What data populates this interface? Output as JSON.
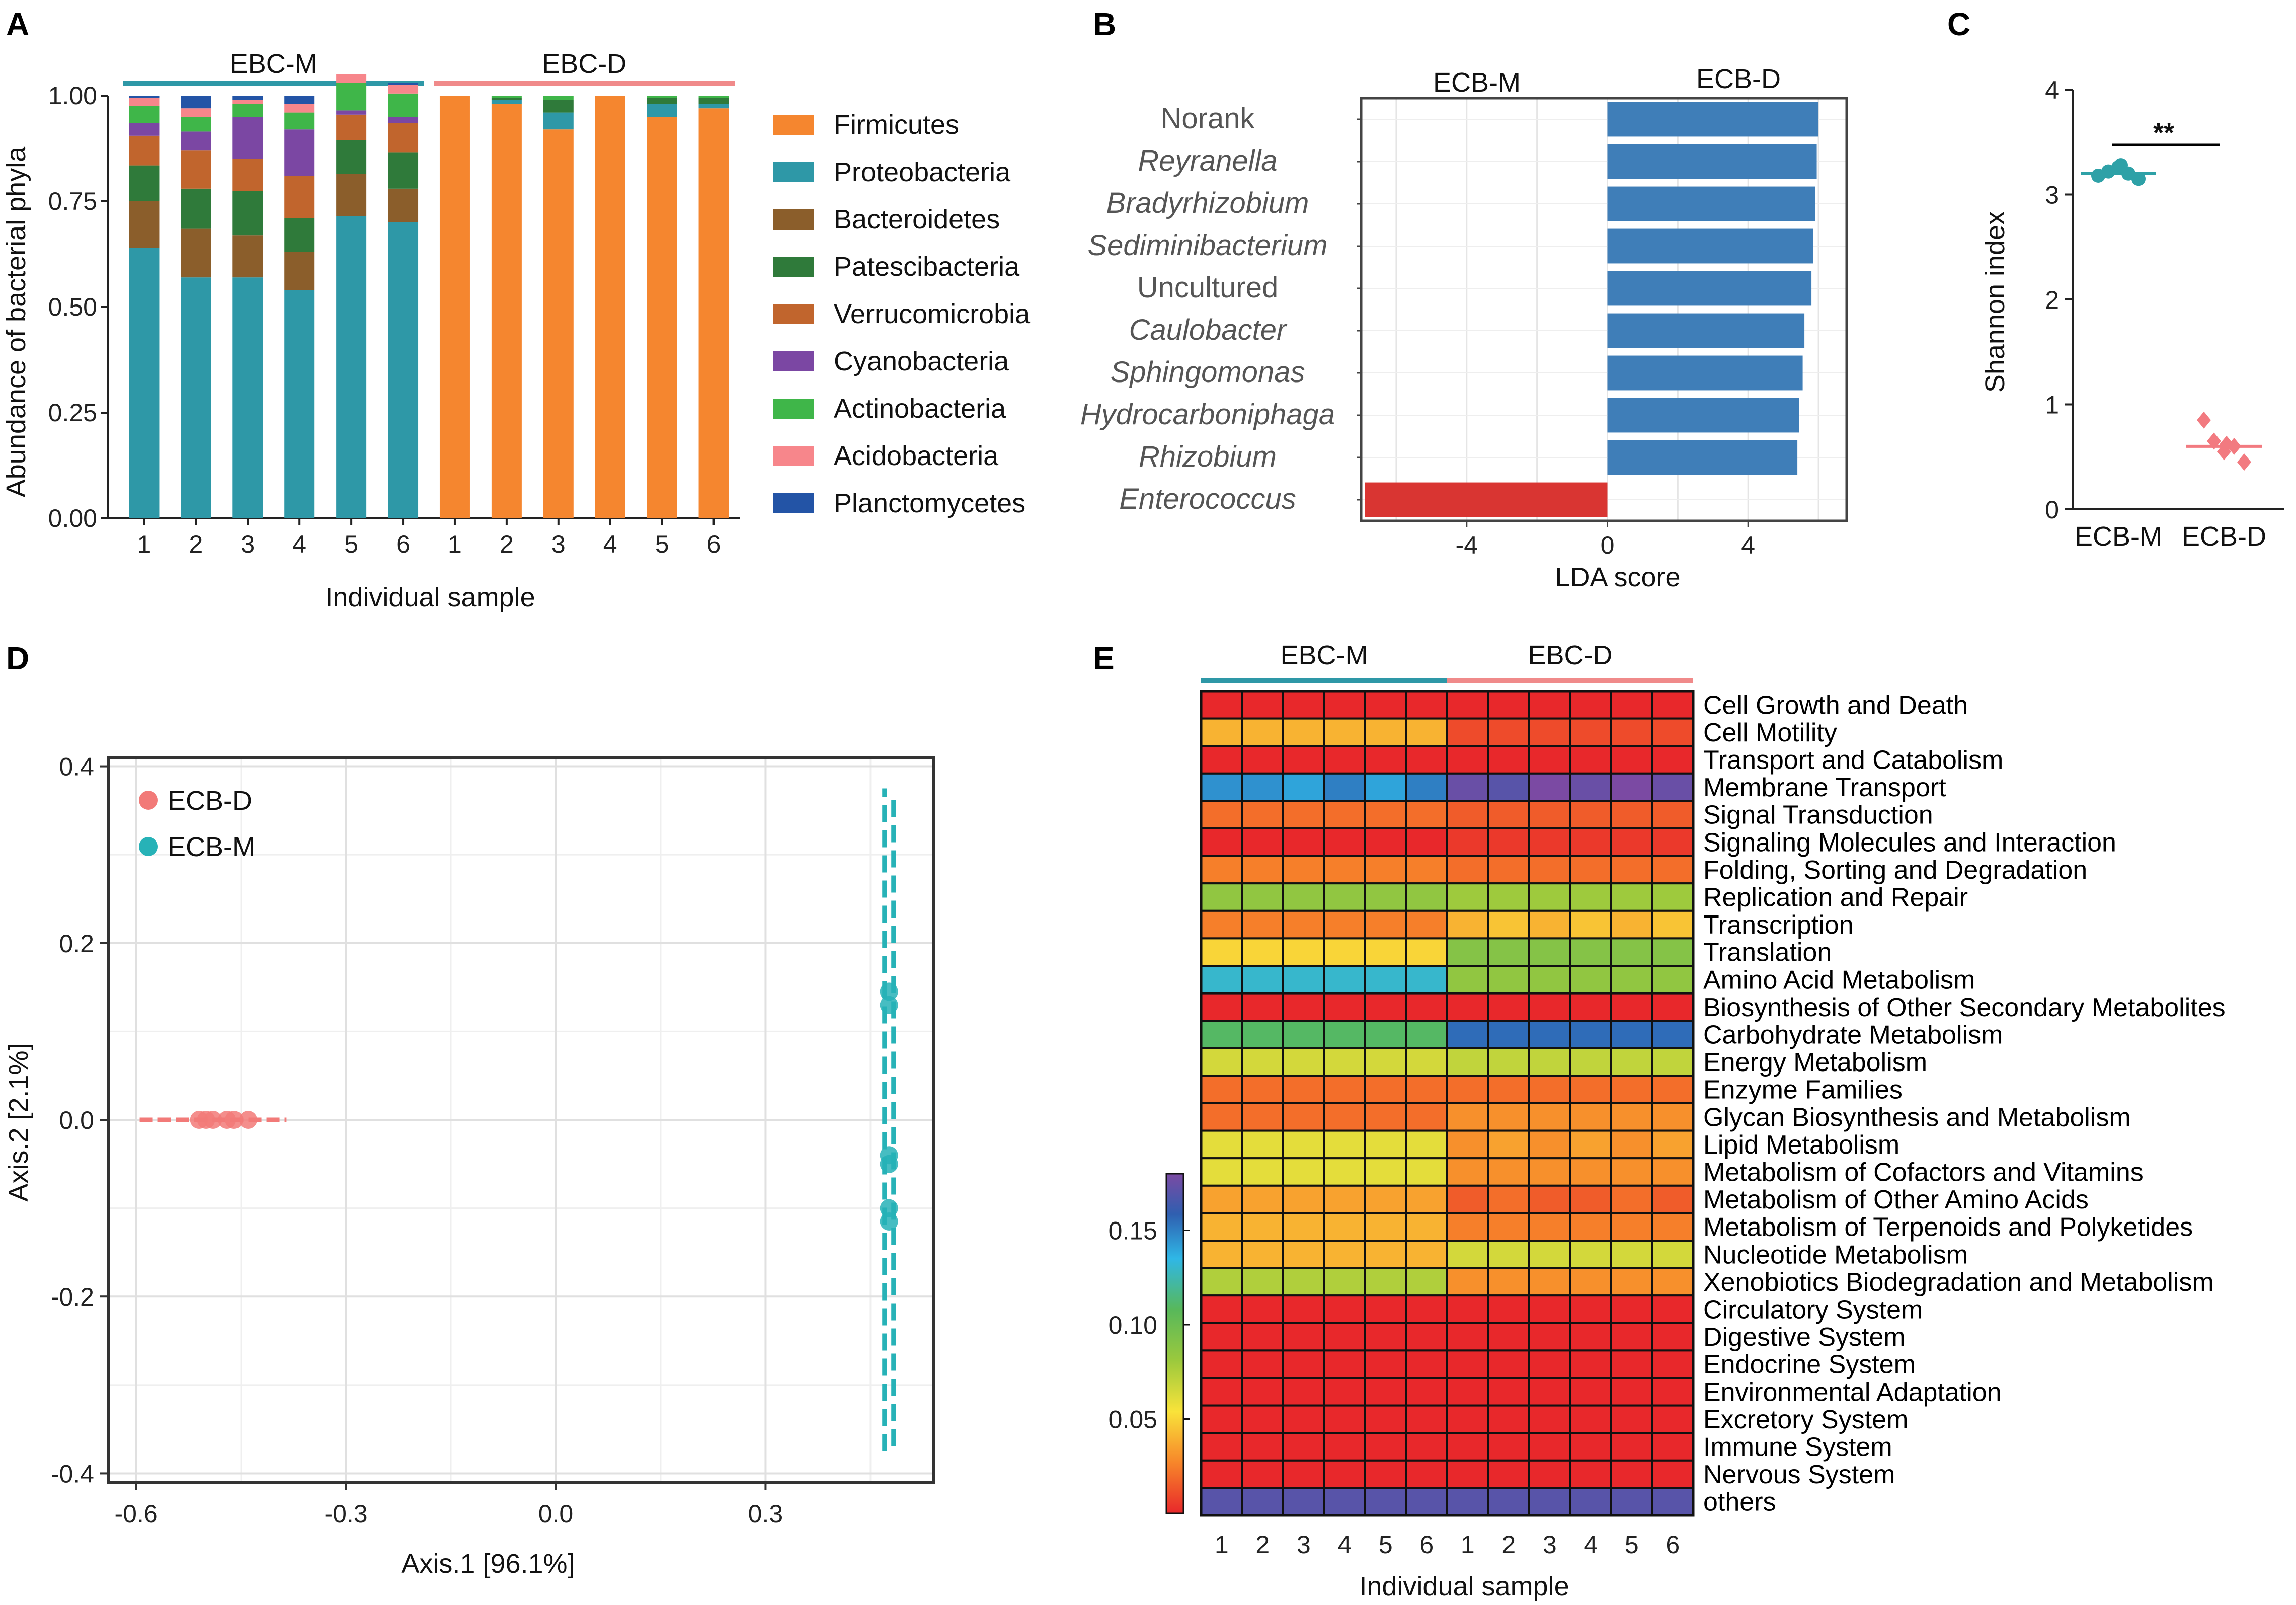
{
  "chart_data": [
    {
      "panel": "A",
      "type": "bar",
      "stacked": true,
      "group_labels": [
        "EBC-M",
        "EBC-D"
      ],
      "group_colors": [
        "#2e98a7",
        "#f08a8a"
      ],
      "categories": [
        "1",
        "2",
        "3",
        "4",
        "5",
        "6",
        "1",
        "2",
        "3",
        "4",
        "5",
        "6"
      ],
      "xlabel": "Individual sample",
      "ylabel": "Abundance of bacterial phyla",
      "yticks": [
        "0.00",
        "0.25",
        "0.50",
        "0.75",
        "1.00"
      ],
      "ylim": [
        0,
        1
      ],
      "series": [
        {
          "name": "Firmicutes",
          "color": "#f5862f",
          "values": [
            0.0,
            0.0,
            0.0,
            0.0,
            0.0,
            0.0,
            1.0,
            0.98,
            0.92,
            1.0,
            0.95,
            0.97
          ]
        },
        {
          "name": "Proteobacteria",
          "color": "#2e98a7",
          "values": [
            0.64,
            0.57,
            0.57,
            0.54,
            0.715,
            0.7,
            0.0,
            0.01,
            0.04,
            0.0,
            0.03,
            0.01
          ]
        },
        {
          "name": "Bacteroidetes",
          "color": "#8b5e2b",
          "values": [
            0.11,
            0.115,
            0.1,
            0.09,
            0.1,
            0.08,
            0.0,
            0.0,
            0.0,
            0.0,
            0.0,
            0.0
          ]
        },
        {
          "name": "Patescibacteria",
          "color": "#2f7a3a",
          "values": [
            0.085,
            0.095,
            0.105,
            0.08,
            0.08,
            0.085,
            0.0,
            0.005,
            0.03,
            0.0,
            0.015,
            0.015
          ]
        },
        {
          "name": "Verrucomicrobia",
          "color": "#c1652d",
          "values": [
            0.07,
            0.09,
            0.075,
            0.1,
            0.06,
            0.07,
            0.0,
            0.0,
            0.0,
            0.0,
            0.0,
            0.0
          ]
        },
        {
          "name": "Cyanobacteria",
          "color": "#7b47a3",
          "values": [
            0.03,
            0.045,
            0.1,
            0.11,
            0.01,
            0.015,
            0.0,
            0.0,
            0.0,
            0.0,
            0.0,
            0.0
          ]
        },
        {
          "name": "Actinobacteria",
          "color": "#3fb649",
          "values": [
            0.04,
            0.035,
            0.03,
            0.04,
            0.065,
            0.055,
            0.0,
            0.005,
            0.01,
            0.0,
            0.005,
            0.005
          ]
        },
        {
          "name": "Acidobacteria",
          "color": "#f7868b",
          "values": [
            0.02,
            0.02,
            0.01,
            0.02,
            0.02,
            0.02,
            0.0,
            0.0,
            0.0,
            0.0,
            0.0,
            0.0
          ]
        },
        {
          "name": "Planctomycetes",
          "color": "#2354a6",
          "values": [
            0.005,
            0.03,
            0.01,
            0.02,
            0.0,
            0.005,
            0.0,
            0.0,
            0.0,
            0.0,
            0.0,
            0.0
          ]
        }
      ]
    },
    {
      "panel": "B",
      "type": "bar",
      "orientation": "horizontal",
      "xlabel": "LDA score",
      "group_labels": [
        "ECB-M",
        "ECB-D"
      ],
      "xticks": [
        "-4",
        "0",
        "4"
      ],
      "xlim": [
        -7,
        6.8
      ],
      "categories": [
        "Norank",
        "Reyranella",
        "Bradyrhizobium",
        "Sediminibacterium",
        "Uncultured",
        "Caulobacter",
        "Sphingomonas",
        "Hydrocarboniphaga",
        "Rhizobium",
        "Enterococcus"
      ],
      "italic": [
        false,
        true,
        true,
        true,
        false,
        true,
        true,
        true,
        true,
        true
      ],
      "values": [
        6.0,
        5.95,
        5.9,
        5.85,
        5.8,
        5.6,
        5.55,
        5.45,
        5.4,
        -6.9
      ],
      "colors": {
        "positive": "#3f7eb8",
        "negative": "#d93532"
      }
    },
    {
      "panel": "C",
      "type": "scatter",
      "ylabel": "Shannon index",
      "categories": [
        "ECB-M",
        "ECB-D"
      ],
      "yticks": [
        "0",
        "1",
        "2",
        "3",
        "4"
      ],
      "ylim": [
        0,
        4
      ],
      "significance": "**",
      "series": [
        {
          "name": "ECB-M",
          "color": "#2ea1a7",
          "mean": 3.2,
          "points": [
            3.18,
            3.22,
            3.26,
            3.2,
            3.15,
            3.28
          ]
        },
        {
          "name": "ECB-D",
          "color": "#f27a80",
          "mean": 0.6,
          "points": [
            0.85,
            0.65,
            0.55,
            0.6,
            0.45,
            0.62
          ]
        }
      ]
    },
    {
      "panel": "D",
      "type": "scatter",
      "xlabel": "Axis.1   [96.1%]",
      "ylabel": "Axis.2   [2.1%]",
      "xticks": [
        "-0.6",
        "-0.3",
        "0.0",
        "0.3"
      ],
      "yticks": [
        "-0.4",
        "-0.2",
        "0.0",
        "0.2",
        "0.4"
      ],
      "xlim": [
        -0.64,
        0.54
      ],
      "ylim": [
        -0.41,
        0.41
      ],
      "legend": [
        "ECB-D",
        "ECB-M"
      ],
      "series": [
        {
          "name": "ECB-D",
          "color": "#f27a78",
          "x": [
            -0.51,
            -0.5,
            -0.49,
            -0.47,
            -0.46,
            -0.44
          ],
          "y": [
            0,
            0,
            0,
            0,
            0,
            0
          ],
          "ellipse": {
            "x": [
              -0.595,
              -0.385
            ],
            "y": [
              0,
              0
            ]
          }
        },
        {
          "name": "ECB-M",
          "color": "#27b2b7",
          "x": [
            0.47,
            0.47,
            0.47,
            0.47,
            0.47,
            0.47
          ],
          "y": [
            0.145,
            0.13,
            -0.04,
            -0.05,
            -0.1,
            -0.115
          ],
          "ellipse": {
            "x": [
              0.47,
              0.47
            ],
            "y": [
              -0.375,
              0.375
            ]
          }
        }
      ]
    },
    {
      "panel": "E",
      "type": "heatmap",
      "xlabel": "Individual sample",
      "group_labels": [
        "EBC-M",
        "EBC-D"
      ],
      "group_colors": [
        "#2e98a7",
        "#f08a8a"
      ],
      "columns": [
        "1",
        "2",
        "3",
        "4",
        "5",
        "6",
        "1",
        "2",
        "3",
        "4",
        "5",
        "6"
      ],
      "colorbar_ticks": [
        "0.15",
        "0.10",
        "0.05"
      ],
      "colorbar_range": [
        0.0,
        0.18
      ],
      "rows": [
        "Cell Growth and Death",
        "Cell Motility",
        "Transport and Catabolism",
        "Membrane Transport",
        "Signal Transduction",
        "Signaling Molecules and Interaction",
        "Folding, Sorting and Degradation",
        "Replication and Repair",
        "Transcription",
        "Translation",
        "Amino Acid Metabolism",
        "Biosynthesis of Other Secondary Metabolites",
        "Carbohydrate Metabolism",
        "Energy Metabolism",
        "Enzyme Families",
        "Glycan Biosynthesis and Metabolism",
        "Lipid Metabolism",
        "Metabolism of Cofactors and Vitamins",
        "Metabolism of Other Amino Acids",
        "Metabolism of Terpenoids and Polyketides",
        "Nucleotide Metabolism",
        "Xenobiotics Biodegradation and Metabolism",
        "Circulatory System",
        "Digestive System",
        "Endocrine System",
        "Environmental Adaptation",
        "Excretory System",
        "Immune System",
        "Nervous System",
        "others"
      ],
      "values": [
        [
          0.0,
          0.0,
          0.0,
          0.0,
          0.0,
          0.0,
          0.0,
          0.0,
          0.0,
          0.0,
          0.0,
          0.0
        ],
        [
          0.04,
          0.04,
          0.04,
          0.04,
          0.04,
          0.04,
          0.01,
          0.01,
          0.01,
          0.01,
          0.01,
          0.01
        ],
        [
          0.0,
          0.0,
          0.0,
          0.0,
          0.0,
          0.0,
          0.0,
          0.0,
          0.0,
          0.0,
          0.0,
          0.0
        ],
        [
          0.145,
          0.145,
          0.14,
          0.15,
          0.14,
          0.15,
          0.175,
          0.17,
          0.18,
          0.175,
          0.18,
          0.175
        ],
        [
          0.02,
          0.02,
          0.02,
          0.02,
          0.02,
          0.02,
          0.015,
          0.015,
          0.015,
          0.015,
          0.015,
          0.015
        ],
        [
          0.0,
          0.0,
          0.0,
          0.0,
          0.0,
          0.0,
          0.005,
          0.005,
          0.005,
          0.005,
          0.005,
          0.005
        ],
        [
          0.025,
          0.025,
          0.025,
          0.025,
          0.025,
          0.025,
          0.02,
          0.02,
          0.02,
          0.02,
          0.02,
          0.02
        ],
        [
          0.085,
          0.085,
          0.085,
          0.085,
          0.085,
          0.085,
          0.08,
          0.08,
          0.08,
          0.08,
          0.08,
          0.08
        ],
        [
          0.025,
          0.025,
          0.025,
          0.025,
          0.025,
          0.025,
          0.04,
          0.045,
          0.04,
          0.045,
          0.04,
          0.045
        ],
        [
          0.05,
          0.05,
          0.05,
          0.05,
          0.05,
          0.05,
          0.09,
          0.09,
          0.09,
          0.09,
          0.09,
          0.09
        ],
        [
          0.13,
          0.13,
          0.13,
          0.13,
          0.13,
          0.13,
          0.085,
          0.085,
          0.085,
          0.085,
          0.085,
          0.085
        ],
        [
          0.0,
          0.0,
          0.0,
          0.0,
          0.0,
          0.0,
          0.0,
          0.0,
          0.0,
          0.0,
          0.0,
          0.0
        ],
        [
          0.11,
          0.11,
          0.11,
          0.11,
          0.11,
          0.11,
          0.155,
          0.155,
          0.155,
          0.155,
          0.155,
          0.155
        ],
        [
          0.065,
          0.065,
          0.065,
          0.065,
          0.065,
          0.065,
          0.07,
          0.07,
          0.07,
          0.07,
          0.07,
          0.07
        ],
        [
          0.02,
          0.02,
          0.02,
          0.02,
          0.02,
          0.02,
          0.02,
          0.02,
          0.02,
          0.02,
          0.02,
          0.02
        ],
        [
          0.02,
          0.02,
          0.02,
          0.02,
          0.02,
          0.02,
          0.03,
          0.03,
          0.03,
          0.03,
          0.03,
          0.03
        ],
        [
          0.06,
          0.06,
          0.06,
          0.06,
          0.06,
          0.06,
          0.03,
          0.035,
          0.03,
          0.035,
          0.03,
          0.035
        ],
        [
          0.06,
          0.06,
          0.06,
          0.06,
          0.06,
          0.06,
          0.03,
          0.03,
          0.03,
          0.03,
          0.03,
          0.03
        ],
        [
          0.035,
          0.035,
          0.035,
          0.035,
          0.035,
          0.035,
          0.015,
          0.02,
          0.015,
          0.015,
          0.02,
          0.015
        ],
        [
          0.04,
          0.04,
          0.04,
          0.04,
          0.04,
          0.04,
          0.025,
          0.025,
          0.025,
          0.025,
          0.025,
          0.025
        ],
        [
          0.04,
          0.04,
          0.04,
          0.04,
          0.04,
          0.04,
          0.065,
          0.065,
          0.065,
          0.065,
          0.065,
          0.065
        ],
        [
          0.075,
          0.075,
          0.075,
          0.075,
          0.075,
          0.075,
          0.03,
          0.03,
          0.03,
          0.03,
          0.03,
          0.03
        ],
        [
          0.0,
          0.0,
          0.0,
          0.0,
          0.0,
          0.0,
          0.0,
          0.0,
          0.0,
          0.0,
          0.0,
          0.0
        ],
        [
          0.0,
          0.0,
          0.0,
          0.0,
          0.0,
          0.0,
          0.0,
          0.0,
          0.0,
          0.0,
          0.0,
          0.0
        ],
        [
          0.0,
          0.0,
          0.0,
          0.0,
          0.0,
          0.0,
          0.0,
          0.0,
          0.0,
          0.0,
          0.0,
          0.0
        ],
        [
          0.0,
          0.0,
          0.0,
          0.0,
          0.0,
          0.0,
          0.0,
          0.0,
          0.0,
          0.0,
          0.0,
          0.0
        ],
        [
          0.0,
          0.0,
          0.0,
          0.0,
          0.0,
          0.0,
          0.0,
          0.0,
          0.0,
          0.0,
          0.0,
          0.0
        ],
        [
          0.0,
          0.0,
          0.0,
          0.0,
          0.0,
          0.0,
          0.0,
          0.0,
          0.0,
          0.0,
          0.0,
          0.0
        ],
        [
          0.0,
          0.0,
          0.0,
          0.0,
          0.0,
          0.0,
          0.0,
          0.0,
          0.0,
          0.0,
          0.0,
          0.0
        ],
        [
          0.17,
          0.17,
          0.17,
          0.17,
          0.17,
          0.17,
          0.17,
          0.17,
          0.17,
          0.17,
          0.17,
          0.17
        ]
      ]
    }
  ],
  "panels": {
    "a": "A",
    "b": "B",
    "c": "C",
    "d": "D",
    "e": "E"
  }
}
